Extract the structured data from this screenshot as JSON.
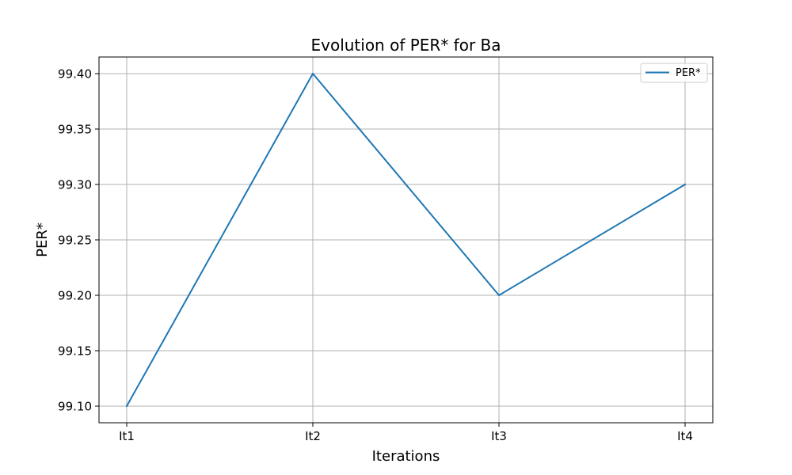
{
  "chart_data": {
    "type": "line",
    "title": "Evolution of PER* for Ba",
    "xlabel": "Iterations",
    "ylabel": "PER*",
    "categories": [
      "It1",
      "It2",
      "It3",
      "It4"
    ],
    "series": [
      {
        "name": "PER*",
        "values": [
          99.1,
          99.4,
          99.2,
          99.3
        ],
        "color": "#1f77b4"
      }
    ],
    "ylim": [
      99.085,
      99.415
    ],
    "yticks": [
      99.1,
      99.15,
      99.2,
      99.25,
      99.3,
      99.35,
      99.4
    ],
    "ytick_labels": [
      "99.10",
      "99.15",
      "99.20",
      "99.25",
      "99.30",
      "99.35",
      "99.40"
    ],
    "grid": true,
    "legend_position": "top-right"
  }
}
